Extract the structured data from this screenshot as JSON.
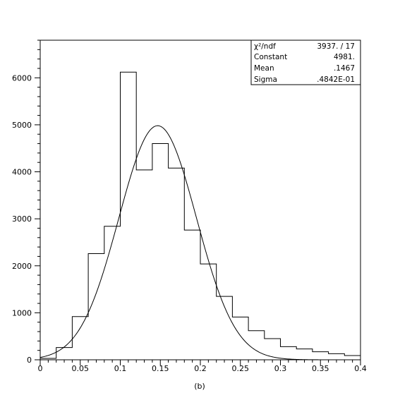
{
  "caption": "(b)",
  "stats": {
    "rows": [
      {
        "label": "χ²/ndf",
        "value": "3937.   /   17"
      },
      {
        "label": "Constant",
        "value": "4981."
      },
      {
        "label": "Mean",
        "value": ".1467"
      },
      {
        "label": "Sigma",
        "value": ".4842E-01"
      }
    ]
  },
  "chart_data": {
    "type": "bar",
    "subtype": "histogram-with-gaussian-fit",
    "title": "",
    "xlabel": "",
    "ylabel": "",
    "xlim": [
      0,
      0.4
    ],
    "ylim": [
      0,
      6800
    ],
    "grid": false,
    "x_ticks": [
      0,
      0.05,
      0.1,
      0.15,
      0.2,
      0.25,
      0.3,
      0.35,
      0.4
    ],
    "x_tick_labels": [
      "0",
      "0.05",
      "0.1",
      "0.15",
      "0.2",
      "0.25",
      "0.3",
      "0.35",
      "0.4"
    ],
    "y_ticks": [
      0,
      1000,
      2000,
      3000,
      4000,
      5000,
      6000
    ],
    "y_tick_labels": [
      "0",
      "1000",
      "2000",
      "3000",
      "4000",
      "5000",
      "6000"
    ],
    "bin_edges": [
      0,
      0.02,
      0.04,
      0.06,
      0.08,
      0.1,
      0.12,
      0.14,
      0.16,
      0.18,
      0.2,
      0.22,
      0.24,
      0.26,
      0.28,
      0.3,
      0.32,
      0.34,
      0.36,
      0.38,
      0.4
    ],
    "values": [
      30,
      260,
      920,
      2260,
      2840,
      6120,
      4040,
      4600,
      4080,
      2760,
      2040,
      1350,
      910,
      620,
      450,
      280,
      230,
      170,
      130,
      90
    ],
    "fit": {
      "function": "gaussian",
      "constant": 4981,
      "mean": 0.1467,
      "sigma": 0.04842
    }
  }
}
